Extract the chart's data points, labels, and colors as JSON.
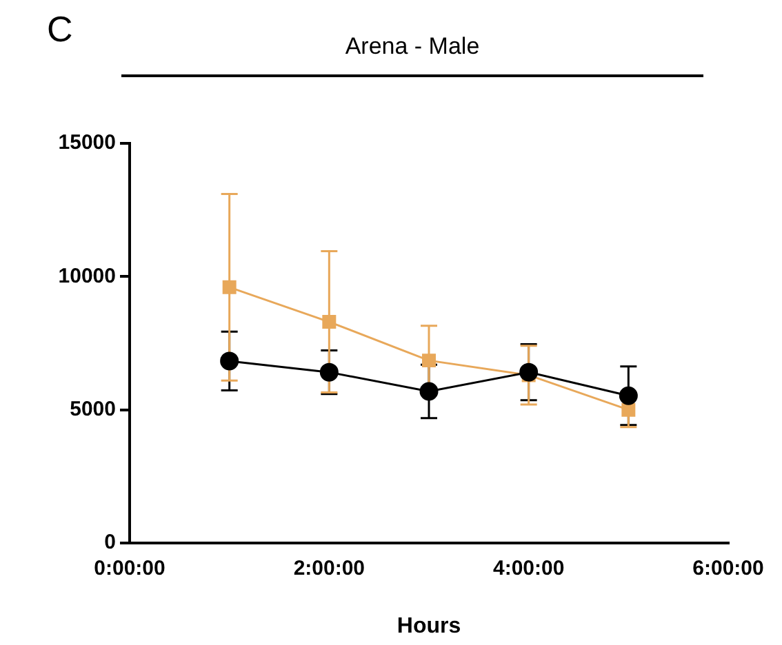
{
  "chart_data": {
    "type": "line",
    "title": "Arena - Male",
    "xlabel": "Hours",
    "annotations": [
      "C"
    ],
    "x": [
      1,
      2,
      3,
      4,
      5
    ],
    "series": [
      {
        "color": "#000000",
        "marker": "circle",
        "values": [
          6830,
          6410,
          5690,
          6410,
          5530
        ],
        "errors": [
          1100,
          820,
          1000,
          1050,
          1100
        ]
      },
      {
        "color": "#e8a85a",
        "marker": "square",
        "values": [
          9600,
          8300,
          6850,
          6300,
          5000
        ],
        "errors": [
          3500,
          2650,
          1300,
          1100,
          650
        ]
      }
    ],
    "xlim": [
      0,
      6
    ],
    "xticks": [
      {
        "value": 0,
        "label": "0:00:00"
      },
      {
        "value": 2,
        "label": "2:00:00"
      },
      {
        "value": 4,
        "label": "4:00:00"
      },
      {
        "value": 6,
        "label": "6:00:00"
      }
    ],
    "ylim": [
      0,
      15000
    ],
    "yticks": [
      0,
      5000,
      10000,
      15000
    ],
    "grid": false,
    "legend": false
  }
}
